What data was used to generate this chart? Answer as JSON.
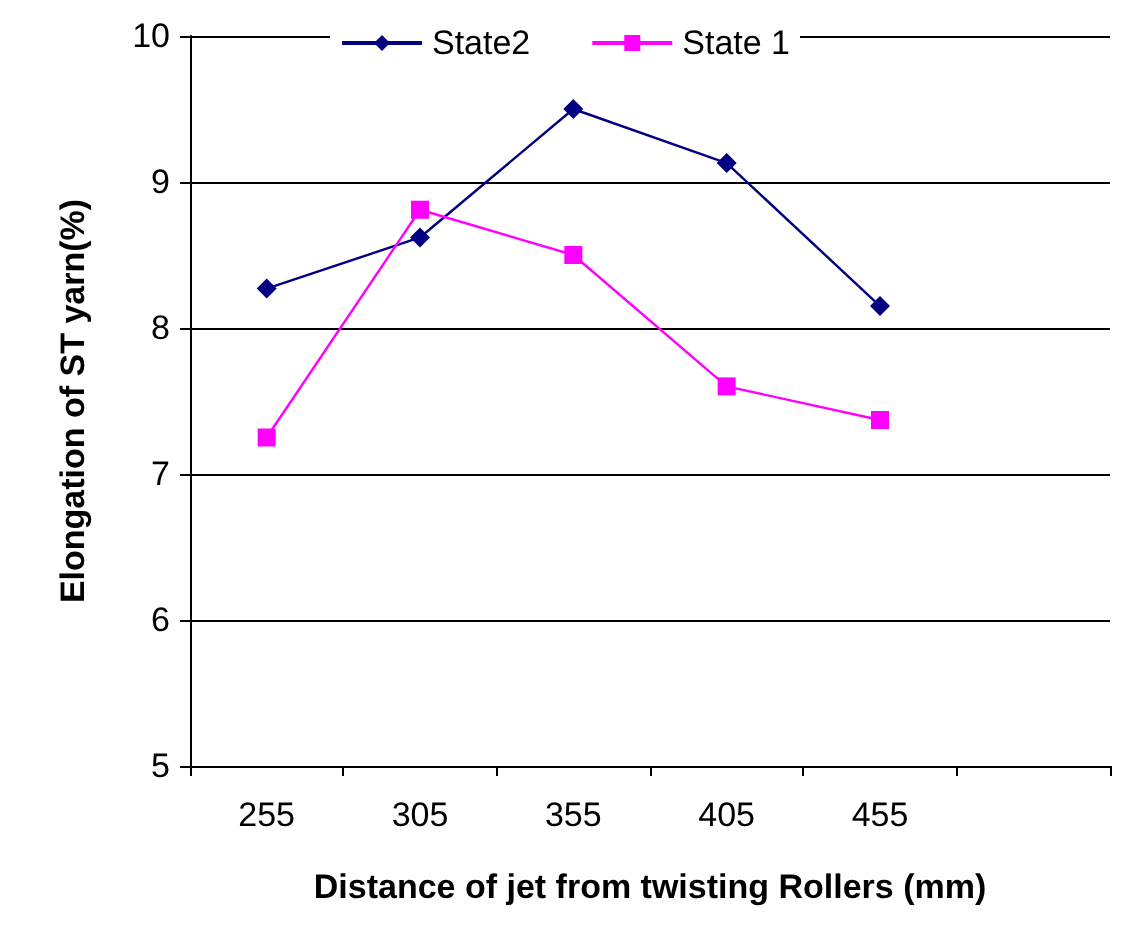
{
  "chart_data": {
    "type": "line",
    "xlabel": "Distance of jet from twisting Rollers (mm)",
    "ylabel": "Elongation of ST yarn(%)",
    "categories": [
      "255",
      "305",
      "355",
      "405",
      "455",
      null
    ],
    "series": [
      {
        "name": "State2",
        "color": "#000080",
        "marker": "diamond",
        "values": [
          8.27,
          8.62,
          9.5,
          9.13,
          8.15,
          null
        ]
      },
      {
        "name": "State 1",
        "color": "#ff00ff",
        "marker": "square",
        "values": [
          7.25,
          8.81,
          8.5,
          7.6,
          7.37,
          null
        ]
      }
    ],
    "ylim": [
      5,
      10
    ],
    "yticks": [
      5,
      6,
      7,
      8,
      9,
      10
    ],
    "grid": "y",
    "legend": "top"
  }
}
